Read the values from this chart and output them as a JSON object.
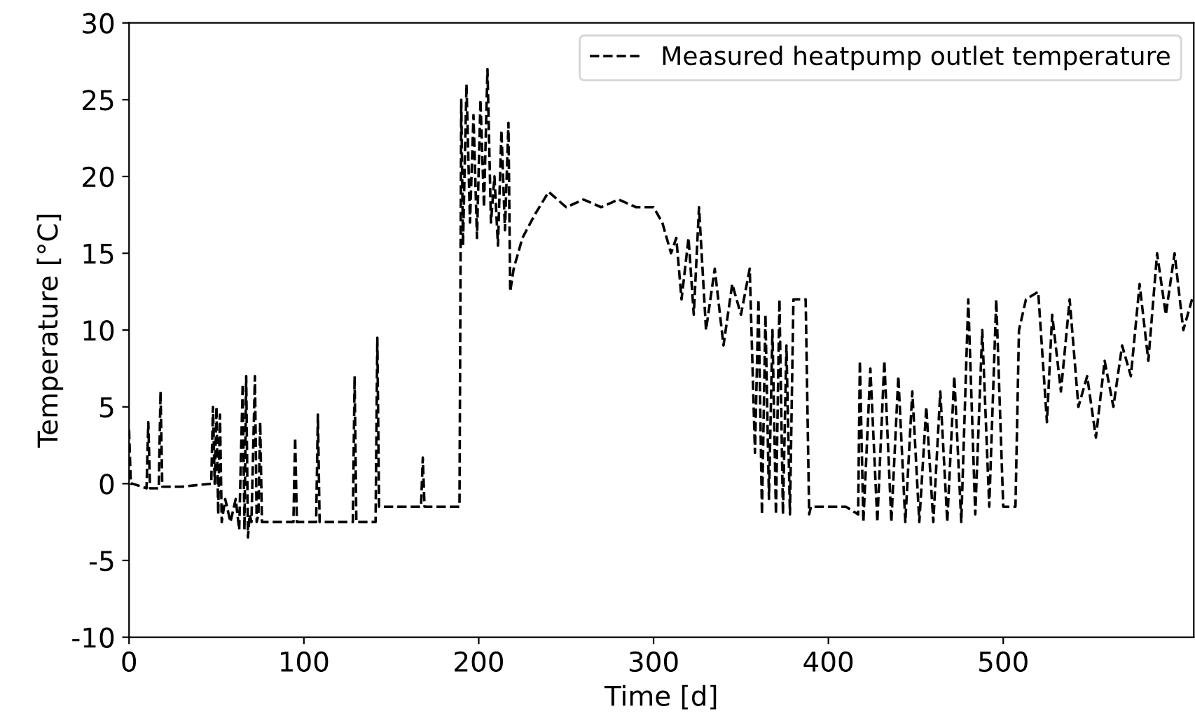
{
  "chart_data": {
    "type": "line",
    "xlabel": "Time [d]",
    "ylabel": "Temperature [°C]",
    "xlim": [
      0,
      609
    ],
    "ylim": [
      -10,
      30
    ],
    "xticks": [
      0,
      100,
      200,
      300,
      400,
      500
    ],
    "yticks": [
      -10,
      -5,
      0,
      5,
      10,
      15,
      20,
      25,
      30
    ],
    "grid": false,
    "legend": "top right",
    "line_style": "dashed",
    "marker": "none",
    "series": [
      {
        "name": "Measured heatpump outlet temperature",
        "color": "#000000",
        "x": [
          0,
          1,
          2,
          10,
          11,
          12,
          17,
          18,
          19,
          30,
          47,
          48,
          49,
          50,
          51,
          52,
          53,
          55,
          58,
          61,
          63,
          65,
          66,
          67,
          68,
          69,
          70,
          72,
          73,
          74,
          75,
          76,
          80,
          94,
          95,
          96,
          107,
          108,
          109,
          128,
          129,
          130,
          141,
          142,
          143,
          150,
          167,
          168,
          169,
          189,
          190,
          191,
          193,
          195,
          197,
          199,
          201,
          203,
          205,
          207,
          209,
          211,
          213,
          215,
          217,
          218,
          220,
          225,
          232,
          240,
          250,
          260,
          270,
          280,
          290,
          300,
          305,
          310,
          313,
          316,
          320,
          323,
          326,
          330,
          335,
          340,
          345,
          350,
          355,
          358,
          360,
          362,
          364,
          366,
          368,
          370,
          372,
          374,
          376,
          378,
          380,
          383,
          387,
          389,
          390,
          395,
          410,
          417,
          418,
          420,
          424,
          428,
          432,
          436,
          440,
          444,
          448,
          452,
          456,
          460,
          464,
          468,
          472,
          476,
          480,
          484,
          488,
          492,
          496,
          500,
          504,
          507,
          509,
          513,
          520,
          525,
          528,
          533,
          538,
          543,
          548,
          553,
          558,
          563,
          568,
          573,
          578,
          583,
          588,
          593,
          598,
          603,
          608
        ],
        "values": [
          3.5,
          0,
          0,
          -0.3,
          4,
          -0.3,
          -0.3,
          6,
          -0.2,
          -0.2,
          0,
          5,
          0,
          5,
          -2,
          4.5,
          -2.5,
          -1,
          -2.5,
          -1,
          -3,
          6.5,
          -3,
          7,
          -3.5,
          -2,
          -2.5,
          7,
          -2.5,
          -2,
          4,
          -2.5,
          -2.5,
          -2.5,
          3,
          -2.5,
          -2.5,
          4.5,
          -2.5,
          -2.5,
          7,
          -2.5,
          -2.5,
          9.5,
          -1.5,
          -1.5,
          -1.5,
          1.7,
          -1.5,
          -1.5,
          25,
          15.5,
          26,
          17,
          24,
          16,
          25,
          18,
          27,
          17,
          20,
          15.5,
          23,
          16.5,
          23.5,
          12.5,
          14,
          16,
          17.5,
          19,
          18,
          18.5,
          18,
          18.5,
          18,
          18,
          17,
          15,
          16,
          12,
          16,
          11,
          18,
          10,
          14,
          9,
          13,
          11,
          14,
          2,
          12,
          -2,
          11,
          -1,
          10,
          -2,
          12,
          -2,
          9,
          -2,
          12,
          12,
          12,
          -2,
          -1.5,
          -1.5,
          -1.5,
          -2,
          8,
          -2.5,
          7.5,
          -2.5,
          8,
          -2.5,
          7,
          -2.5,
          6,
          -2.5,
          5,
          -2.5,
          6,
          -2.5,
          7,
          -2.5,
          12,
          -2,
          10,
          -1.5,
          12,
          -1.5,
          -1.5,
          -1.5,
          10,
          12,
          12.5,
          4,
          11,
          6,
          12,
          5,
          7,
          3,
          8,
          5,
          9,
          7,
          13,
          8,
          15,
          11,
          15,
          10,
          12
        ]
      }
    ]
  }
}
